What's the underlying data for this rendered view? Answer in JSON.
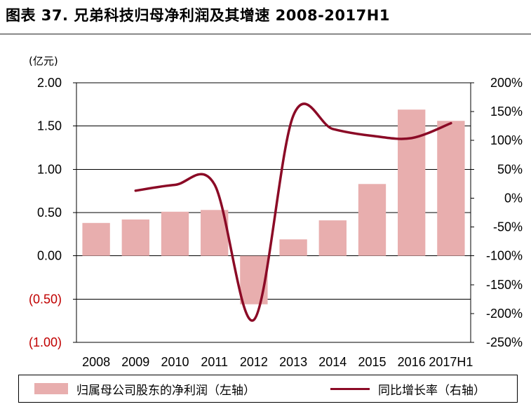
{
  "title": "图表 37. 兄弟科技归母净利润及其增速 2008-2017H1",
  "colors": {
    "bar": "#e8aeae",
    "line": "#8b0a26",
    "negative_tick": "#c00000",
    "axis": "#000000",
    "grid": "#000000"
  },
  "legend": {
    "bar_label": "归属母公司股东的净利润（左轴）",
    "line_label": "同比增长率（右轴）"
  },
  "chart_data": {
    "type": "bar",
    "title": "图表 37. 兄弟科技归母净利润及其增速 2008-2017H1",
    "categories": [
      "2008",
      "2009",
      "2010",
      "2011",
      "2012",
      "2013",
      "2014",
      "2015",
      "2016",
      "2017H1"
    ],
    "left_axis": {
      "unit": "(亿元)",
      "ylim": [
        -1.0,
        2.0
      ],
      "ticks": [
        2.0,
        1.5,
        1.0,
        0.5,
        0.0,
        -0.5,
        -1.0
      ],
      "tick_labels": [
        "2.00",
        "1.50",
        "1.00",
        "0.50",
        "0.00",
        "(0.50)",
        "(1.00)"
      ]
    },
    "right_axis": {
      "ylim": [
        -250,
        200
      ],
      "ticks": [
        200,
        150,
        100,
        50,
        0,
        -50,
        -100,
        -150,
        -200,
        -250
      ],
      "tick_labels": [
        "200%",
        "150%",
        "100%",
        "50%",
        "0%",
        "-50%",
        "-100%",
        "-150%",
        "-200%",
        "-250%"
      ]
    },
    "grid": true,
    "legend_position": "bottom",
    "series": [
      {
        "name": "归属母公司股东的净利润（左轴）",
        "type": "bar",
        "axis": "left",
        "values": [
          0.38,
          0.42,
          0.51,
          0.53,
          -0.56,
          0.19,
          0.41,
          0.83,
          1.69,
          1.56
        ]
      },
      {
        "name": "同比增长率（右轴）",
        "type": "line",
        "axis": "right",
        "values": [
          null,
          13,
          23,
          24,
          -211,
          143,
          120,
          108,
          104,
          130
        ]
      }
    ]
  }
}
